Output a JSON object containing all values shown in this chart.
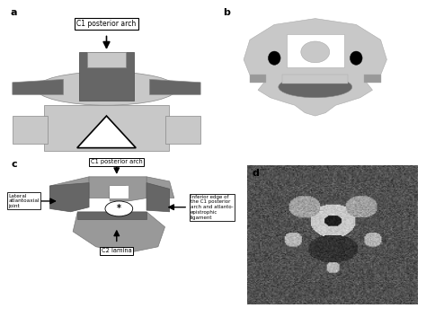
{
  "panel_a_label": "a",
  "panel_b_label": "b",
  "panel_c_label": "c",
  "panel_d_label": "d",
  "label_a_text": "C1 posterior arch",
  "label_c1": "C1 posterior arch",
  "label_c2": "C2 lamina",
  "label_lateral": "Lateral\natlantoaxial\njoint",
  "label_inferior": "Inferior edge of\nthe C1 posterior\narch and atlanto-\nepistrophic\nligament",
  "light_gray": "#c8c8c8",
  "mid_gray": "#999999",
  "dark_gray": "#666666",
  "very_dark_gray": "#444444",
  "white": "#ffffff",
  "black": "#000000",
  "arrow_gray": "#c0c0c0"
}
